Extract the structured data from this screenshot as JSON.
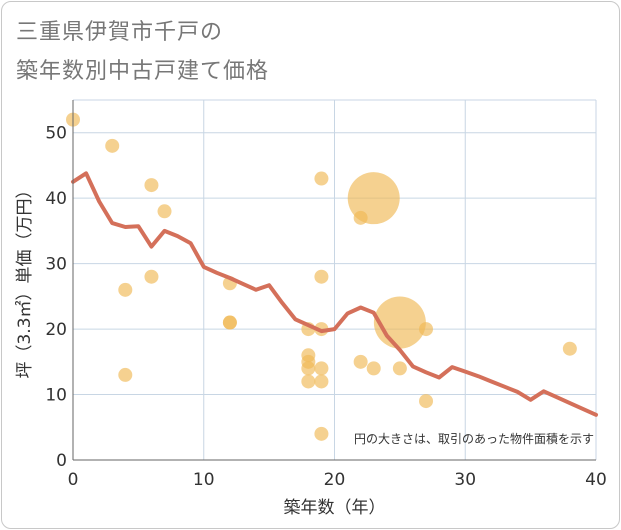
{
  "title_line1": "三重県伊賀市千戸の",
  "title_line2": "築年数別中古戸建て価格",
  "chart_data": {
    "type": "scatter",
    "xlabel": "築年数（年）",
    "ylabel": "坪（3.3㎡）単価（万円）",
    "xlim": [
      0,
      40
    ],
    "ylim": [
      0,
      55
    ],
    "xticks": [
      0,
      10,
      20,
      30,
      40
    ],
    "yticks": [
      0,
      10,
      20,
      30,
      40,
      50
    ],
    "grid": true,
    "note": "円の大きさは、取引のあった物件面積を示す",
    "colors": {
      "point": "#f0b955",
      "line": "#d4705a",
      "grid": "#c8d6e4",
      "axis": "#666666"
    },
    "points": [
      {
        "x": 0,
        "y": 52,
        "size": 1
      },
      {
        "x": 3,
        "y": 48,
        "size": 1
      },
      {
        "x": 4,
        "y": 26,
        "size": 1
      },
      {
        "x": 4,
        "y": 13,
        "size": 1
      },
      {
        "x": 6,
        "y": 42,
        "size": 1
      },
      {
        "x": 6,
        "y": 28,
        "size": 1
      },
      {
        "x": 7,
        "y": 38,
        "size": 1
      },
      {
        "x": 12,
        "y": 27,
        "size": 1
      },
      {
        "x": 12,
        "y": 21,
        "size": 1
      },
      {
        "x": 12,
        "y": 21,
        "size": 1
      },
      {
        "x": 18,
        "y": 20,
        "size": 1
      },
      {
        "x": 18,
        "y": 16,
        "size": 1
      },
      {
        "x": 18,
        "y": 15,
        "size": 1
      },
      {
        "x": 18,
        "y": 14,
        "size": 1
      },
      {
        "x": 18,
        "y": 12,
        "size": 1
      },
      {
        "x": 19,
        "y": 43,
        "size": 1
      },
      {
        "x": 19,
        "y": 28,
        "size": 1
      },
      {
        "x": 19,
        "y": 20,
        "size": 1
      },
      {
        "x": 19,
        "y": 14,
        "size": 1
      },
      {
        "x": 19,
        "y": 12,
        "size": 1
      },
      {
        "x": 19,
        "y": 4,
        "size": 1
      },
      {
        "x": 22,
        "y": 37,
        "size": 1
      },
      {
        "x": 22,
        "y": 15,
        "size": 1
      },
      {
        "x": 23,
        "y": 40,
        "size": 10
      },
      {
        "x": 23,
        "y": 14,
        "size": 1
      },
      {
        "x": 25,
        "y": 21,
        "size": 10
      },
      {
        "x": 25,
        "y": 14,
        "size": 1
      },
      {
        "x": 27,
        "y": 20,
        "size": 1
      },
      {
        "x": 27,
        "y": 9,
        "size": 1
      },
      {
        "x": 38,
        "y": 17,
        "size": 1
      }
    ],
    "trend": {
      "x": [
        0,
        1,
        2,
        3,
        4,
        5,
        6,
        7,
        8,
        9,
        10,
        11,
        12,
        13,
        14,
        15,
        16,
        17,
        18,
        19,
        20,
        21,
        22,
        23,
        24,
        25,
        26,
        27,
        28,
        29,
        30,
        31,
        32,
        33,
        34,
        35,
        36,
        37,
        38,
        39,
        40
      ],
      "y": [
        42.5,
        43.8,
        39.5,
        36.2,
        35.6,
        35.7,
        32.6,
        35.0,
        34.2,
        33.1,
        29.5,
        28.6,
        27.8,
        26.9,
        26.0,
        26.7,
        24.0,
        21.5,
        20.6,
        19.7,
        20.0,
        22.4,
        23.3,
        22.5,
        19.0,
        16.8,
        14.3,
        13.4,
        12.6,
        14.2,
        13.5,
        12.8,
        12.0,
        11.2,
        10.4,
        9.2,
        10.5,
        9.6,
        8.7,
        7.8,
        6.9
      ]
    }
  }
}
